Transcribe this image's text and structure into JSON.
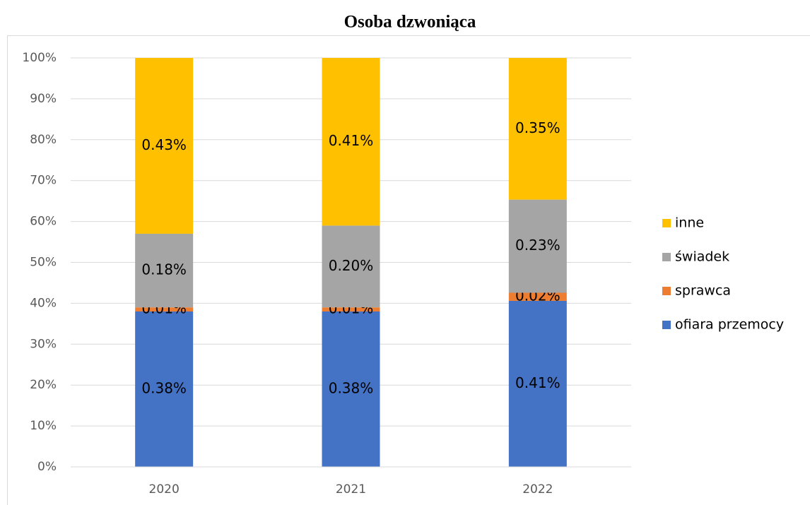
{
  "chart_data": {
    "type": "stacked100",
    "title": "Osoba dzwoniąca",
    "categories": [
      "2020",
      "2021",
      "2022"
    ],
    "series": [
      {
        "name": "ofiara przemocy",
        "color": "#4472c4",
        "values": [
          0.38,
          0.38,
          0.41
        ],
        "value_labels": [
          "0.38%",
          "0.38%",
          "0.41%"
        ]
      },
      {
        "name": "sprawca",
        "color": "#ed7d31",
        "values": [
          0.01,
          0.01,
          0.02
        ],
        "value_labels": [
          "0.01%",
          "0.01%",
          "0.02%"
        ]
      },
      {
        "name": "świadek",
        "color": "#a5a5a5",
        "values": [
          0.18,
          0.2,
          0.23
        ],
        "value_labels": [
          "0.18%",
          "0.20%",
          "0.23%"
        ]
      },
      {
        "name": "inne",
        "color": "#ffc000",
        "values": [
          0.43,
          0.41,
          0.35
        ],
        "value_labels": [
          "0.43%",
          "0.41%",
          "0.35%"
        ]
      }
    ],
    "ylim": [
      0,
      100
    ],
    "yticks": [
      {
        "value": 0,
        "label": "0%"
      },
      {
        "value": 10,
        "label": "10%"
      },
      {
        "value": 20,
        "label": "20%"
      },
      {
        "value": 30,
        "label": "30%"
      },
      {
        "value": 40,
        "label": "40%"
      },
      {
        "value": 50,
        "label": "50%"
      },
      {
        "value": 60,
        "label": "60%"
      },
      {
        "value": 70,
        "label": "70%"
      },
      {
        "value": 80,
        "label": "80%"
      },
      {
        "value": 90,
        "label": "90%"
      },
      {
        "value": 100,
        "label": "100%"
      }
    ],
    "grid": true,
    "legend": "right"
  }
}
